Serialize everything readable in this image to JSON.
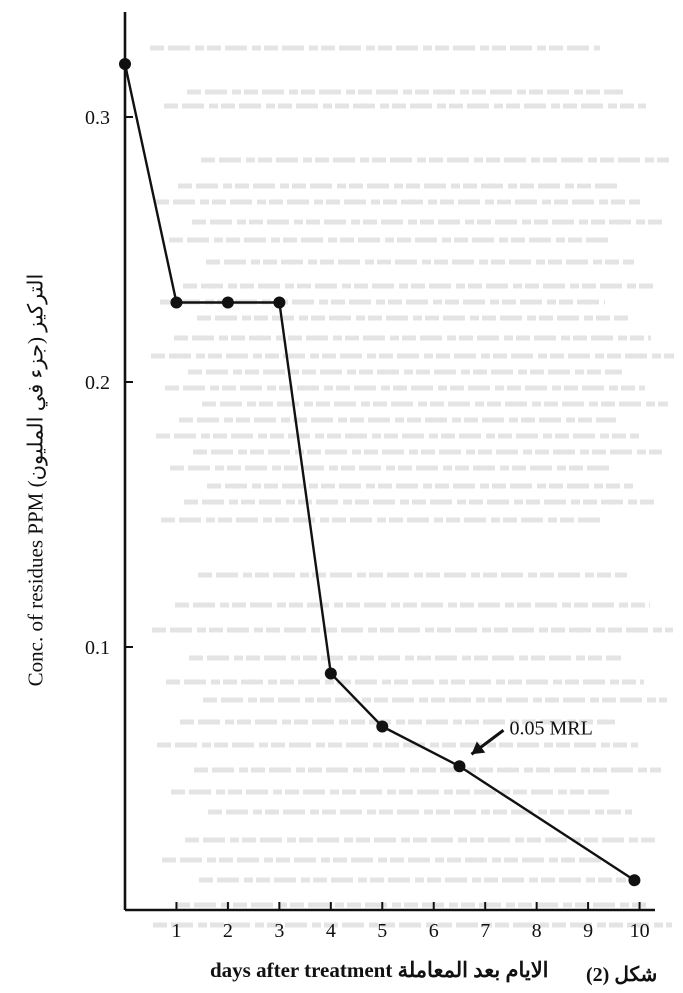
{
  "chart_data": {
    "type": "line",
    "ylabel": "Conc. of residues PPM (التركيز (جزء في المليون",
    "xlabel": "days after treatment الايام بعد المعاملة",
    "caption": "شكل (2)",
    "x": [
      0,
      1,
      2,
      3,
      4,
      5,
      6.5,
      9.9
    ],
    "values": [
      0.32,
      0.23,
      0.23,
      0.23,
      0.09,
      0.07,
      0.055,
      0.012
    ],
    "xlim": [
      0,
      10
    ],
    "ylim": [
      0,
      0.33
    ],
    "x_ticks": [
      1,
      2,
      3,
      4,
      5,
      6,
      7,
      8,
      9,
      10
    ],
    "y_ticks": [
      0.1,
      0.2,
      0.3
    ],
    "grid": false,
    "annotations": [
      {
        "text": "0.05 MRL",
        "x": 6.5,
        "y": 0.055
      }
    ],
    "colors": {
      "line": "#111111",
      "points": "#111111"
    }
  }
}
